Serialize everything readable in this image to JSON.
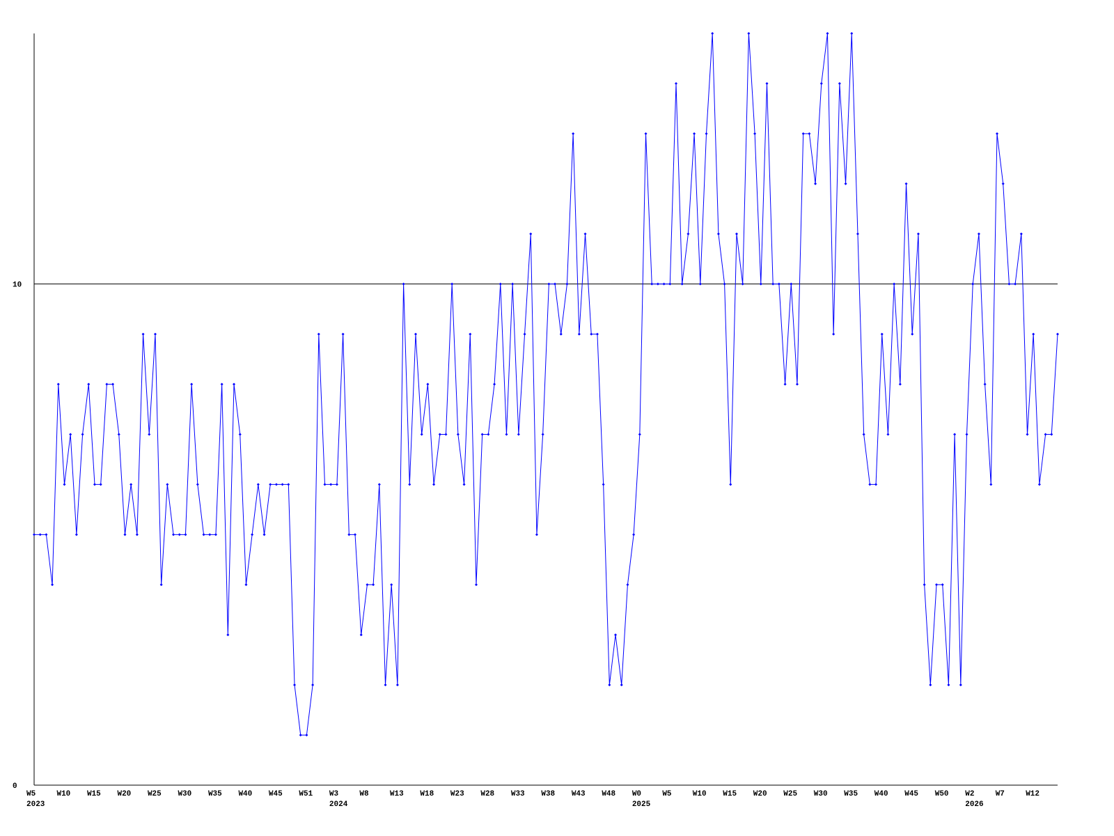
{
  "chart_data": {
    "type": "line",
    "categories": [
      "W5",
      null,
      null,
      null,
      null,
      "W10",
      null,
      null,
      null,
      null,
      "W15",
      null,
      null,
      null,
      null,
      "W20",
      null,
      null,
      null,
      null,
      "W25",
      null,
      null,
      null,
      null,
      "W30",
      null,
      null,
      null,
      null,
      "W35",
      null,
      null,
      null,
      null,
      "W40",
      null,
      null,
      null,
      null,
      "W45",
      null,
      null,
      null,
      null,
      "W51",
      null,
      null,
      null,
      null,
      "W3",
      null,
      null,
      null,
      null,
      "W8",
      null,
      null,
      null,
      null,
      "W13",
      null,
      null,
      null,
      null,
      "W18",
      null,
      null,
      null,
      null,
      "W23",
      null,
      null,
      null,
      null,
      "W28",
      null,
      null,
      null,
      null,
      "W33",
      null,
      null,
      null,
      null,
      "W38",
      null,
      null,
      null,
      null,
      "W43",
      null,
      null,
      null,
      null,
      "W48",
      null,
      null,
      null,
      null,
      "W0",
      null,
      null,
      null,
      null,
      "W5",
      null,
      null,
      null,
      null,
      "W10",
      null,
      null,
      null,
      null,
      "W15",
      null,
      null,
      null,
      null,
      "W20",
      null,
      null,
      null,
      null,
      "W25",
      null,
      null,
      null,
      null,
      "W30",
      null,
      null,
      null,
      null,
      "W35",
      null,
      null,
      null,
      null,
      "W40",
      null,
      null,
      null,
      null,
      "W45",
      null,
      null,
      null,
      null,
      "W50",
      null,
      null,
      null,
      null,
      "W2",
      null,
      null,
      null,
      null,
      "W7",
      null,
      null,
      null,
      null,
      "W12",
      null,
      null,
      null,
      null
    ],
    "years": [
      "2023",
      null,
      null,
      null,
      null,
      null,
      null,
      null,
      null,
      null,
      null,
      null,
      null,
      null,
      null,
      null,
      null,
      null,
      null,
      null,
      null,
      null,
      null,
      null,
      null,
      null,
      null,
      null,
      null,
      null,
      null,
      null,
      null,
      null,
      null,
      null,
      null,
      null,
      null,
      null,
      null,
      null,
      null,
      null,
      null,
      null,
      null,
      null,
      null,
      null,
      "2024",
      null,
      null,
      null,
      null,
      null,
      null,
      null,
      null,
      null,
      null,
      null,
      null,
      null,
      null,
      null,
      null,
      null,
      null,
      null,
      null,
      null,
      null,
      null,
      null,
      null,
      null,
      null,
      null,
      null,
      null,
      null,
      null,
      null,
      null,
      null,
      null,
      null,
      null,
      null,
      null,
      null,
      null,
      null,
      null,
      null,
      null,
      null,
      null,
      null,
      "2025",
      null,
      null,
      null,
      null,
      null,
      null,
      null,
      null,
      null,
      null,
      null,
      null,
      null,
      null,
      null,
      null,
      null,
      null,
      null,
      null,
      null,
      null,
      null,
      null,
      null,
      null,
      null,
      null,
      null,
      null,
      null,
      null,
      null,
      null,
      null,
      null,
      null,
      null,
      null,
      null,
      null,
      null,
      null,
      null,
      null,
      null,
      null,
      null,
      null,
      null,
      null,
      null,
      null,
      null,
      "2026",
      null,
      null,
      null,
      null,
      null,
      null,
      null,
      null,
      null,
      null,
      null,
      null,
      null,
      null
    ],
    "series": [
      {
        "color": "#0000ff",
        "values": [
          5,
          5,
          5,
          4,
          8,
          6,
          7,
          5,
          7,
          8,
          6,
          6,
          8,
          8,
          7,
          5,
          6,
          5,
          9,
          7,
          9,
          4,
          6,
          5,
          5,
          5,
          8,
          6,
          5,
          5,
          5,
          8,
          3,
          8,
          7,
          4,
          5,
          6,
          5,
          6,
          6,
          6,
          6,
          2,
          1,
          1,
          2,
          9,
          6,
          6,
          6,
          9,
          5,
          5,
          3,
          4,
          4,
          6,
          2,
          4,
          2,
          10,
          6,
          9,
          7,
          8,
          6,
          7,
          7,
          10,
          7,
          6,
          9,
          4,
          7,
          7,
          8,
          10,
          7,
          10,
          7,
          9,
          11,
          5,
          7,
          10,
          10,
          9,
          10,
          13,
          9,
          11,
          9,
          9,
          6,
          2,
          3,
          2,
          4,
          5,
          7,
          13,
          10,
          10,
          10,
          10,
          14,
          10,
          11,
          13,
          10,
          13,
          15,
          11,
          10,
          6,
          11,
          10,
          15,
          13,
          10,
          14,
          10,
          10,
          8,
          10,
          8,
          13,
          13,
          12,
          14,
          15,
          9,
          14,
          12,
          15,
          11,
          7,
          6,
          6,
          9,
          7,
          10,
          8,
          12,
          9,
          11,
          4,
          2,
          4,
          4,
          2,
          7,
          2,
          7,
          10,
          11,
          8,
          6,
          13,
          12,
          10,
          10,
          11,
          7,
          9,
          6,
          7,
          7,
          9
        ]
      }
    ],
    "ylim": [
      0,
      15
    ],
    "yticks": [
      0,
      10
    ],
    "grid": true
  }
}
